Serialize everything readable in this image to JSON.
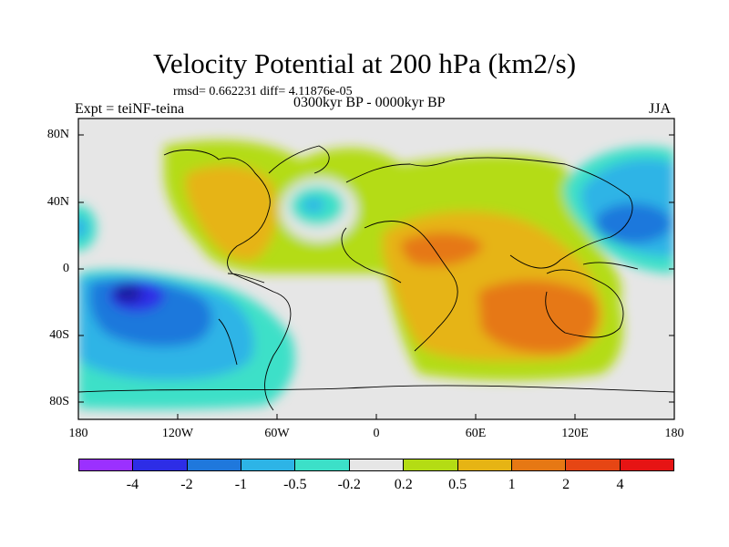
{
  "title": "Velocity Potential at 200 hPa (km2/s)",
  "subtitle": "rmsd= 0.662231 diff= 4.11876e-05",
  "left_label": "Expt = teiNF-teina",
  "center_label": "0300kyr BP - 0000kyr BP",
  "right_label": "JJA",
  "y_ticks": [
    "80N",
    "40N",
    "0",
    "40S",
    "80S"
  ],
  "x_ticks": [
    "180",
    "120W",
    "60W",
    "0",
    "60E",
    "120E",
    "180"
  ],
  "colorbar": {
    "colors": [
      "#9b30ff",
      "#2d2de6",
      "#1f78dc",
      "#2db4e6",
      "#3ce0c8",
      "#e6e6e6",
      "#b4dc14",
      "#e6b414",
      "#e67814",
      "#e64614",
      "#e61414"
    ],
    "labels": [
      "-4",
      "-2",
      "-1",
      "-0.5",
      "-0.2",
      "0.2",
      "0.5",
      "1",
      "2",
      "4"
    ]
  },
  "field_colors": {
    "neutral": "#e6e6e6",
    "weak_pos": "#b4dc14",
    "mid_pos": "#e6b414",
    "strong_pos": "#e67814",
    "weak_neg": "#3ce0c8",
    "mid_neg": "#2db4e6",
    "strong_neg": "#1f78dc",
    "vstrong_neg": "#2d2de6",
    "max_neg": "#1a1aa0"
  }
}
